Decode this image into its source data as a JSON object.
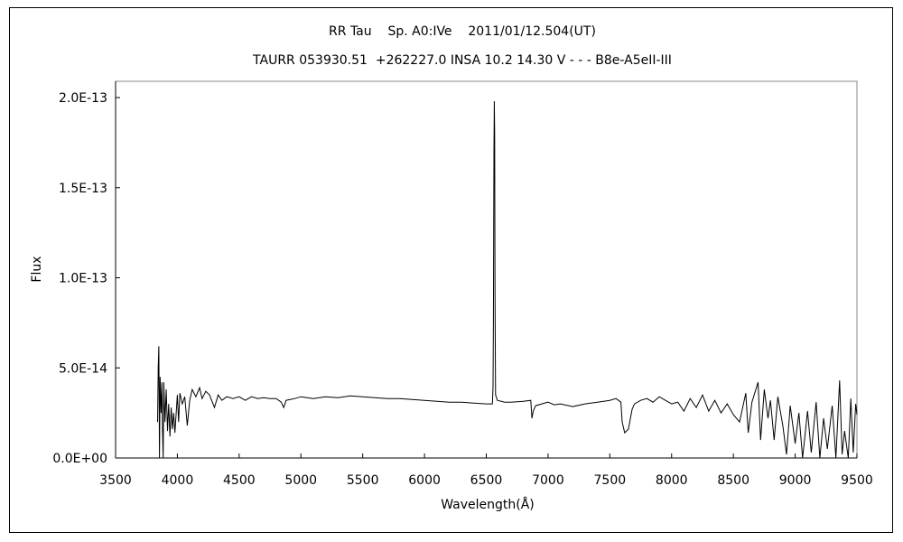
{
  "chart_data": {
    "type": "line",
    "title": "RR Tau    Sp. A0:IVe    2011/01/12.504(UT)",
    "subtitle": "TAURR 053930.51  +262227.0 INSA 10.2 14.30 V - - - B8e-A5eII-III",
    "xlabel": "Wavelength(Å)",
    "ylabel": "Flux",
    "xlim": [
      3500,
      9500
    ],
    "ylim": [
      0,
      2e-13
    ],
    "xticks": [
      "3500",
      "4000",
      "4500",
      "5000",
      "5500",
      "6000",
      "6500",
      "7000",
      "7500",
      "8000",
      "8500",
      "9000",
      "9500"
    ],
    "yticks": [
      "0.0E+00",
      "5.0E-14",
      "1.0E-13",
      "1.5E-13",
      "2.0E-13"
    ],
    "ytick_values": [
      0,
      5e-14,
      1e-13,
      1.5e-13,
      2e-13
    ],
    "grid": false,
    "line_color": "#000000",
    "x": [
      3840,
      3845,
      3850,
      3855,
      3860,
      3868,
      3875,
      3880,
      3885,
      3890,
      3900,
      3910,
      3920,
      3930,
      3940,
      3950,
      3960,
      3970,
      3980,
      4000,
      4010,
      4020,
      4040,
      4060,
      4080,
      4100,
      4120,
      4150,
      4180,
      4200,
      4230,
      4260,
      4300,
      4330,
      4360,
      4400,
      4450,
      4500,
      4550,
      4600,
      4650,
      4700,
      4750,
      4800,
      4840,
      4861,
      4880,
      4950,
      5000,
      5100,
      5200,
      5300,
      5400,
      5500,
      5600,
      5700,
      5800,
      5900,
      6000,
      6100,
      6200,
      6300,
      6400,
      6500,
      6550,
      6555,
      6558,
      6562,
      6565,
      6568,
      6571,
      6575,
      6590,
      6650,
      6700,
      6800,
      6860,
      6870,
      6880,
      6900,
      6950,
      7000,
      7050,
      7100,
      7200,
      7300,
      7400,
      7500,
      7550,
      7590,
      7600,
      7620,
      7650,
      7680,
      7700,
      7750,
      7800,
      7850,
      7900,
      7950,
      8000,
      8050,
      8100,
      8150,
      8200,
      8250,
      8300,
      8350,
      8400,
      8450,
      8500,
      8550,
      8600,
      8620,
      8650,
      8700,
      8720,
      8750,
      8780,
      8800,
      8830,
      8860,
      8900,
      8930,
      8960,
      9000,
      9030,
      9060,
      9100,
      9130,
      9170,
      9200,
      9230,
      9260,
      9300,
      9330,
      9360,
      9380,
      9400,
      9430,
      9450,
      9470,
      9490,
      9500
    ],
    "y": [
      2e-14,
      5e-14,
      6.2e-14,
      0,
      4.5e-14,
      2.5e-14,
      4.2e-14,
      1.5e-14,
      0,
      4.2e-14,
      2e-14,
      3.8e-14,
      1.5e-14,
      3e-14,
      1.2e-14,
      2.8e-14,
      1.6e-14,
      2.5e-14,
      1.4e-14,
      3.5e-14,
      2e-14,
      3.6e-14,
      3e-14,
      3.4e-14,
      1.8e-14,
      3.2e-14,
      3.8e-14,
      3.4e-14,
      3.9e-14,
      3.3e-14,
      3.7e-14,
      3.5e-14,
      2.8e-14,
      3.5e-14,
      3.2e-14,
      3.4e-14,
      3.3e-14,
      3.4e-14,
      3.2e-14,
      3.4e-14,
      3.3e-14,
      3.35e-14,
      3.3e-14,
      3.3e-14,
      3.1e-14,
      2.8e-14,
      3.2e-14,
      3.3e-14,
      3.4e-14,
      3.3e-14,
      3.4e-14,
      3.35e-14,
      3.45e-14,
      3.4e-14,
      3.35e-14,
      3.3e-14,
      3.3e-14,
      3.25e-14,
      3.2e-14,
      3.15e-14,
      3.1e-14,
      3.1e-14,
      3.05e-14,
      3e-14,
      3e-14,
      4e-14,
      7.5e-14,
      1.7e-13,
      1.98e-13,
      1.8e-13,
      9e-14,
      3.5e-14,
      3.2e-14,
      3.1e-14,
      3.1e-14,
      3.15e-14,
      3.2e-14,
      2.2e-14,
      2.6e-14,
      2.9e-14,
      3e-14,
      3.1e-14,
      2.95e-14,
      3e-14,
      2.85e-14,
      3e-14,
      3.1e-14,
      3.2e-14,
      3.3e-14,
      3.1e-14,
      2e-14,
      1.4e-14,
      1.6e-14,
      2.7e-14,
      3e-14,
      3.2e-14,
      3.3e-14,
      3.1e-14,
      3.4e-14,
      3.2e-14,
      3e-14,
      3.1e-14,
      2.6e-14,
      3.3e-14,
      2.8e-14,
      3.5e-14,
      2.6e-14,
      3.2e-14,
      2.5e-14,
      3e-14,
      2.4e-14,
      2e-14,
      3.6e-14,
      1.4e-14,
      3.1e-14,
      4.2e-14,
      1e-14,
      3.8e-14,
      2.2e-14,
      3.2e-14,
      1e-14,
      3.4e-14,
      1.8e-14,
      2e-15,
      2.9e-14,
      8e-15,
      2.5e-14,
      0,
      2.6e-14,
      3e-15,
      3.1e-14,
      0,
      2.2e-14,
      5e-15,
      2.9e-14,
      0,
      4.3e-14,
      2e-15,
      1.5e-14,
      0,
      3.3e-14,
      3e-15,
      3e-14,
      2.4e-14
    ]
  }
}
